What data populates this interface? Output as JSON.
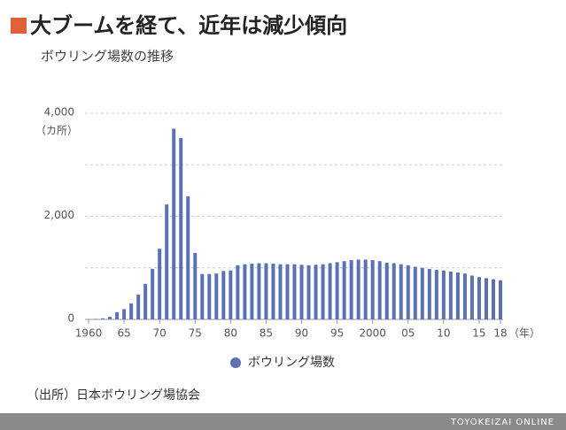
{
  "chart_data": {
    "type": "bar",
    "title": "大ブームを経て、近年は減少傾向",
    "subtitle": "ボウリング場数の推移",
    "y_unit": "（カ所）",
    "x_unit": "（年）",
    "categories": [
      "1960",
      null,
      null,
      null,
      null,
      "65",
      null,
      null,
      null,
      null,
      "70",
      null,
      null,
      null,
      null,
      "75",
      null,
      null,
      null,
      null,
      "80",
      null,
      null,
      null,
      null,
      "85",
      null,
      null,
      null,
      null,
      "90",
      null,
      null,
      null,
      null,
      "95",
      null,
      null,
      null,
      null,
      "2000",
      null,
      null,
      null,
      null,
      "05",
      null,
      null,
      null,
      null,
      "10",
      null,
      null,
      null,
      null,
      "15",
      null,
      null,
      "18"
    ],
    "series": [
      {
        "name": "ボウリング場数",
        "color": "#5a72b5",
        "values": [
          5,
          10,
          20,
          50,
          140,
          200,
          310,
          480,
          690,
          980,
          1370,
          2230,
          3700,
          3520,
          2390,
          1290,
          880,
          880,
          890,
          940,
          950,
          1050,
          1070,
          1080,
          1090,
          1090,
          1080,
          1070,
          1070,
          1070,
          1060,
          1050,
          1060,
          1070,
          1090,
          1110,
          1130,
          1150,
          1160,
          1160,
          1150,
          1130,
          1100,
          1090,
          1070,
          1050,
          1020,
          1000,
          980,
          960,
          950,
          930,
          910,
          890,
          850,
          820,
          800,
          780,
          760
        ]
      }
    ],
    "ylim": [
      0,
      4000
    ],
    "yticks": [
      {
        "value": 0,
        "label": "0"
      },
      {
        "value": 2000,
        "label": "2,000"
      },
      {
        "value": 4000,
        "label": "4,000"
      }
    ],
    "minor_gridlines": [
      1000,
      3000
    ],
    "grid": true,
    "source": "（出所）日本ボウリング場協会",
    "footer": "TOYOKEIZAI ONLINE"
  }
}
